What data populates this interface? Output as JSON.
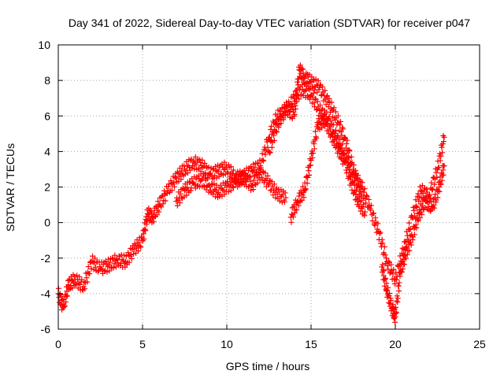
{
  "chart_data": {
    "type": "scatter",
    "title": "Day 341 of 2022, Sidereal Day-to-day VTEC variation (SDTVAR) for receiver p047",
    "xlabel": "GPS time / hours",
    "ylabel": "SDTVAR / TECUs",
    "xlim": [
      0,
      25
    ],
    "ylim": [
      -6,
      10
    ],
    "xticks": [
      0,
      5,
      10,
      15,
      20,
      25
    ],
    "yticks": [
      -6,
      -4,
      -2,
      0,
      2,
      4,
      6,
      8,
      10
    ],
    "grid": true,
    "marker": "+",
    "color": "#ff0000",
    "series": [
      {
        "x": [
          0.0,
          0.3,
          0.6,
          1.0,
          1.5,
          2.0,
          2.5,
          3.0,
          3.5,
          4.0,
          4.5,
          5.0,
          5.3,
          5.6,
          6.0,
          6.5,
          7.0,
          7.5,
          8.0,
          8.5,
          9.0,
          9.5,
          10.0,
          10.5,
          11.0,
          11.5,
          12.0,
          12.5,
          13.0,
          13.5,
          14.0,
          14.5,
          15.0,
          15.5,
          16.0,
          16.5,
          17.0,
          17.5,
          18.0,
          18.5,
          19.0,
          19.5,
          20.0,
          20.5,
          21.0,
          21.5,
          22.0,
          22.5,
          22.9
        ],
        "y": [
          -4.0,
          -4.8,
          -3.5,
          -3.2,
          -3.6,
          -2.2,
          -2.6,
          -2.4,
          -2.1,
          -2.2,
          -1.5,
          -1.0,
          0.5,
          0.3,
          1.0,
          1.8,
          2.5,
          3.0,
          3.4,
          3.2,
          2.7,
          2.9,
          3.1,
          2.5,
          2.6,
          2.9,
          3.2,
          4.8,
          6.0,
          6.2,
          7.0,
          7.5,
          7.2,
          6.3,
          5.8,
          4.8,
          3.8,
          2.8,
          2.0,
          0.8,
          -0.5,
          -2.2,
          -3.2,
          -1.5,
          0.3,
          1.8,
          1.5,
          3.0,
          4.8
        ]
      },
      {
        "x": [
          7.0,
          7.5,
          8.0,
          8.5,
          9.0,
          9.5,
          10.0,
          10.5,
          11.0,
          11.5,
          12.0,
          12.5,
          13.0,
          13.5
        ],
        "y": [
          1.2,
          1.8,
          2.2,
          2.4,
          2.0,
          1.7,
          2.0,
          2.3,
          2.5,
          2.1,
          2.8,
          2.2,
          1.6,
          1.4
        ]
      },
      {
        "x": [
          12.5,
          13.0,
          13.5,
          14.0,
          14.3,
          14.6,
          15.0,
          15.5,
          16.0,
          16.5,
          17.0,
          17.5,
          18.0
        ],
        "y": [
          4.0,
          5.5,
          6.5,
          6.0,
          8.6,
          8.2,
          7.9,
          7.6,
          6.8,
          5.9,
          4.8,
          3.0,
          1.5
        ]
      },
      {
        "x": [
          13.8,
          14.2,
          14.6,
          15.0,
          15.4,
          15.8,
          16.2,
          16.6,
          17.0,
          17.4,
          17.8,
          18.2
        ],
        "y": [
          0.3,
          1.2,
          1.8,
          3.5,
          5.5,
          5.8,
          5.0,
          4.2,
          3.4,
          2.2,
          1.2,
          0.6
        ]
      },
      {
        "x": [
          19.2,
          19.5,
          19.8,
          20.0,
          20.3,
          20.6,
          21.0,
          21.4,
          21.8,
          22.2,
          22.6,
          22.9
        ],
        "y": [
          -2.5,
          -3.8,
          -4.8,
          -5.3,
          -2.8,
          -1.8,
          -0.8,
          0.5,
          1.2,
          0.8,
          2.0,
          3.2
        ]
      }
    ]
  }
}
